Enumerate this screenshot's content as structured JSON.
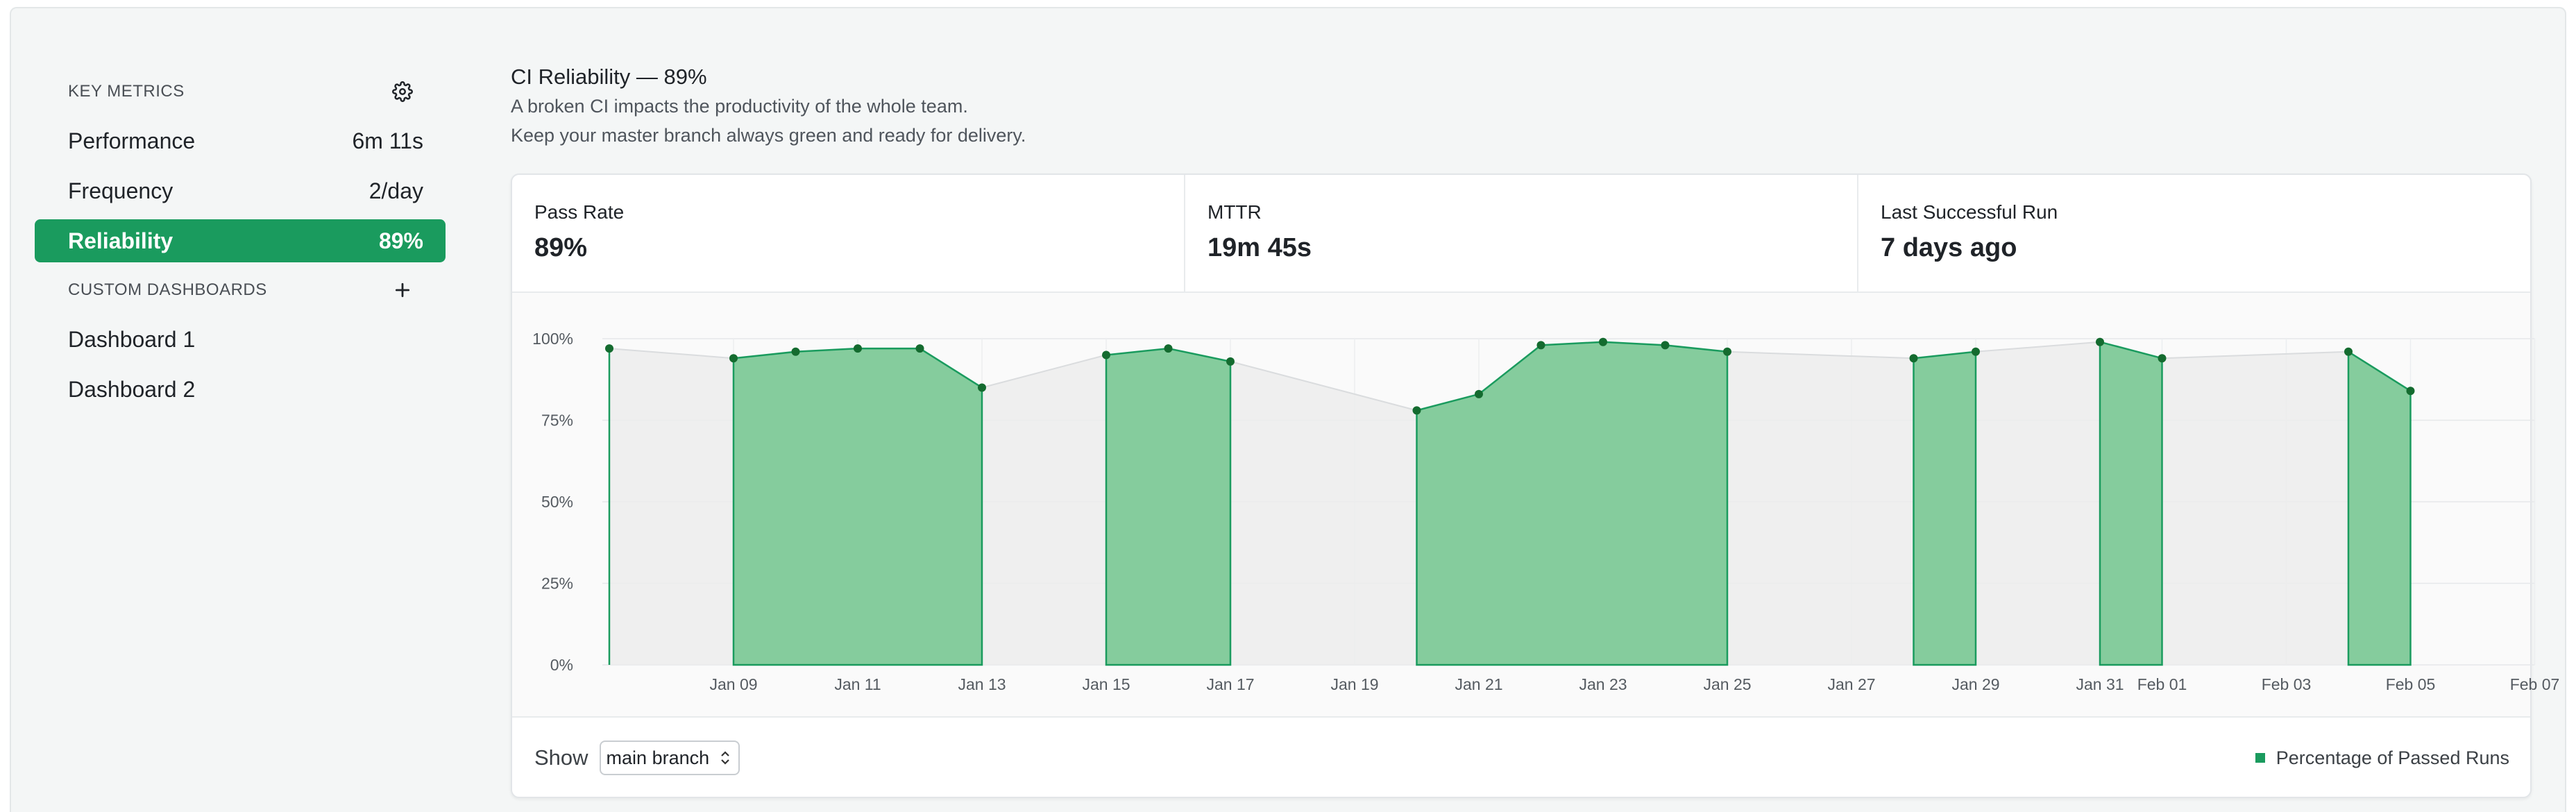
{
  "sidebar": {
    "key_metrics_title": "KEY METRICS",
    "items": [
      {
        "label": "Performance",
        "value": "6m 11s"
      },
      {
        "label": "Frequency",
        "value": "2/day"
      },
      {
        "label": "Reliability",
        "value": "89%"
      }
    ],
    "custom_title": "CUSTOM DASHBOARDS",
    "dashboards": [
      {
        "label": "Dashboard 1"
      },
      {
        "label": "Dashboard 2"
      }
    ]
  },
  "main": {
    "title": "CI Reliability — 89%",
    "desc_line1": "A broken CI impacts the productivity of the whole team.",
    "desc_line2": "Keep your master branch always green and ready for delivery."
  },
  "metrics": [
    {
      "label": "Pass Rate",
      "value": "89%"
    },
    {
      "label": "MTTR",
      "value": "19m 45s"
    },
    {
      "label": "Last Successful Run",
      "value": "7 days ago"
    }
  ],
  "footer": {
    "show_label": "Show",
    "branch_select": "main branch",
    "legend_label": "Percentage of Passed Runs"
  },
  "colors": {
    "accent": "#1a9b5e",
    "area_fill": "#85cc9d",
    "area_stroke": "#1a9b5e",
    "point": "#146b2f",
    "gap_fill": "#ececec"
  },
  "icons": {
    "settings": "gear-icon",
    "add_dashboard": "plus-icon",
    "select_caret": "updown-chevron-icon",
    "legend": "square-icon"
  },
  "chart_data": {
    "type": "area",
    "title": "",
    "xlabel": "",
    "ylabel": "",
    "ylim": [
      0,
      100
    ],
    "y_ticks": [
      "0%",
      "25%",
      "50%",
      "75%",
      "100%"
    ],
    "x_start": "2024-01-07",
    "x_ticks": [
      "Jan 09",
      "Jan 11",
      "Jan 13",
      "Jan 15",
      "Jan 17",
      "Jan 19",
      "Jan 21",
      "Jan 23",
      "Jan 25",
      "Jan 27",
      "Jan 29",
      "Jan 31",
      "Feb 01",
      "Feb 03",
      "Feb 05",
      "Feb 07"
    ],
    "grid": true,
    "legend_position": "bottom-right",
    "series": [
      {
        "name": "Percentage of Passed Runs",
        "segments": [
          [
            [
              "2024-01-07",
              97
            ]
          ],
          [
            [
              "2024-01-09",
              94
            ],
            [
              "2024-01-10",
              96
            ],
            [
              "2024-01-11",
              97
            ],
            [
              "2024-01-12",
              97
            ],
            [
              "2024-01-13",
              85
            ]
          ],
          [
            [
              "2024-01-15",
              95
            ],
            [
              "2024-01-16",
              97
            ],
            [
              "2024-01-17",
              93
            ]
          ],
          [
            [
              "2024-01-20",
              78
            ],
            [
              "2024-01-21",
              83
            ],
            [
              "2024-01-22",
              98
            ],
            [
              "2024-01-23",
              99
            ],
            [
              "2024-01-24",
              98
            ],
            [
              "2024-01-25",
              96
            ]
          ],
          [
            [
              "2024-01-28",
              94
            ],
            [
              "2024-01-29",
              96
            ]
          ],
          [
            [
              "2024-01-31",
              99
            ],
            [
              "2024-02-01",
              94
            ]
          ],
          [
            [
              "2024-02-04",
              96
            ],
            [
              "2024-02-05",
              84
            ]
          ]
        ]
      }
    ]
  }
}
